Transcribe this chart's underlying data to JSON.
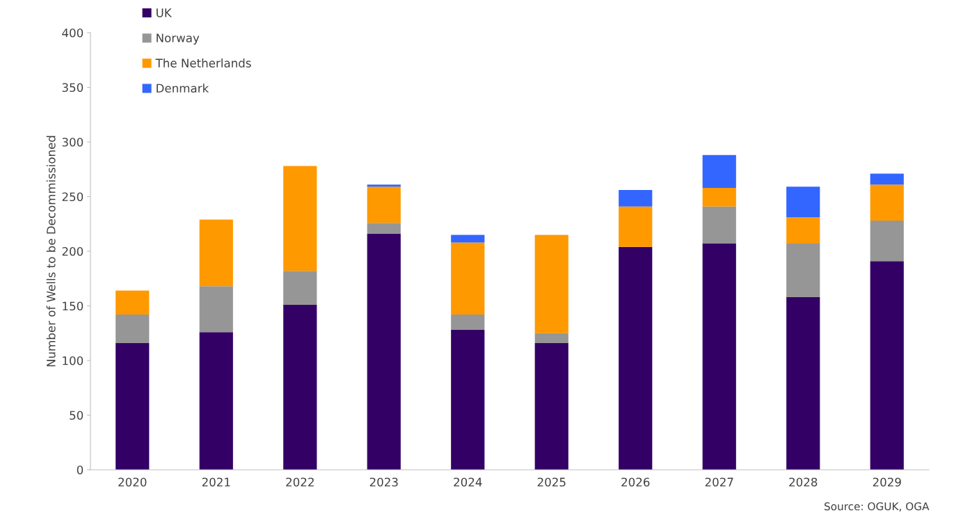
{
  "chart_data": {
    "type": "bar",
    "stacked": true,
    "ylabel": "Number of Wells to be Decommissioned",
    "categories": [
      "2020",
      "2021",
      "2022",
      "2023",
      "2024",
      "2025",
      "2026",
      "2027",
      "2028",
      "2029"
    ],
    "series": [
      {
        "name": "UK",
        "color": "#330066",
        "values": [
          116,
          126,
          151,
          216,
          128,
          116,
          204,
          207,
          158,
          191
        ]
      },
      {
        "name": "Norway",
        "color": "#969696",
        "values": [
          26,
          42,
          31,
          10,
          14,
          9,
          0,
          34,
          49,
          37
        ]
      },
      {
        "name": "The Netherlands",
        "color": "#ff9900",
        "values": [
          22,
          61,
          96,
          33,
          66,
          90,
          37,
          17,
          24,
          33
        ]
      },
      {
        "name": "Denmark",
        "color": "#3366ff",
        "values": [
          0,
          0,
          0,
          2,
          7,
          0,
          15,
          30,
          28,
          10
        ]
      }
    ],
    "ylim": [
      0,
      400
    ],
    "yticks": [
      0,
      50,
      100,
      150,
      200,
      250,
      300,
      350,
      400
    ],
    "grid": false,
    "legend": "top left",
    "annotations": [
      "Source: OGUK, OGA"
    ]
  }
}
